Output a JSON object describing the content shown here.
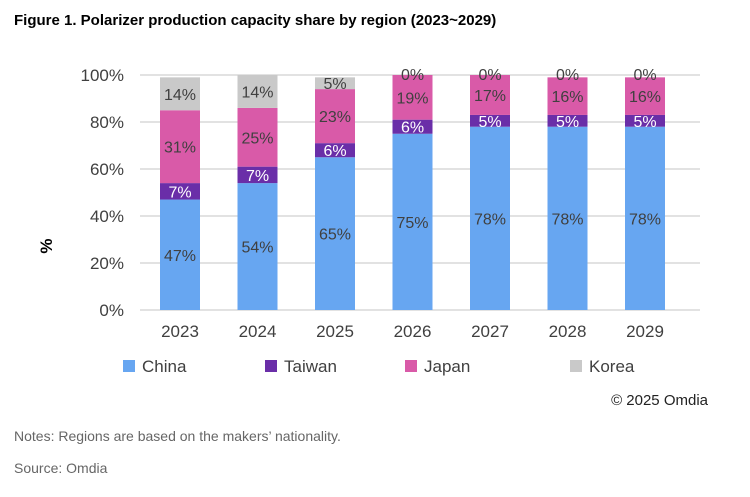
{
  "figure_title": "Figure 1. Polarizer production capacity share by region (2023~2029)",
  "copyright": "© 2025 Omdia",
  "notes": "Notes: Regions are based on the makers’ nationality.",
  "source": "Source: Omdia",
  "chart_data": {
    "type": "bar",
    "stacked": true,
    "title": "",
    "xlabel": "",
    "ylabel": "%",
    "ylim": [
      0,
      100
    ],
    "yticks": [
      "0%",
      "20%",
      "40%",
      "60%",
      "80%",
      "100%"
    ],
    "grid": true,
    "legend": "bottom",
    "categories": [
      "2023",
      "2024",
      "2025",
      "2026",
      "2027",
      "2028",
      "2029"
    ],
    "series": [
      {
        "name": "China",
        "color": "#67a6f1",
        "label_color": "#404040",
        "values": [
          47,
          54,
          65,
          75,
          78,
          78,
          78
        ]
      },
      {
        "name": "Taiwan",
        "color": "#6a2ea8",
        "label_color": "#ffffff",
        "values": [
          7,
          7,
          6,
          6,
          5,
          5,
          5
        ]
      },
      {
        "name": "Japan",
        "color": "#d95aa8",
        "label_color": "#404040",
        "values": [
          31,
          25,
          23,
          19,
          17,
          16,
          16
        ]
      },
      {
        "name": "Korea",
        "color": "#c9c9c9",
        "label_color": "#404040",
        "values": [
          14,
          14,
          5,
          0,
          0,
          0,
          0
        ]
      }
    ]
  }
}
